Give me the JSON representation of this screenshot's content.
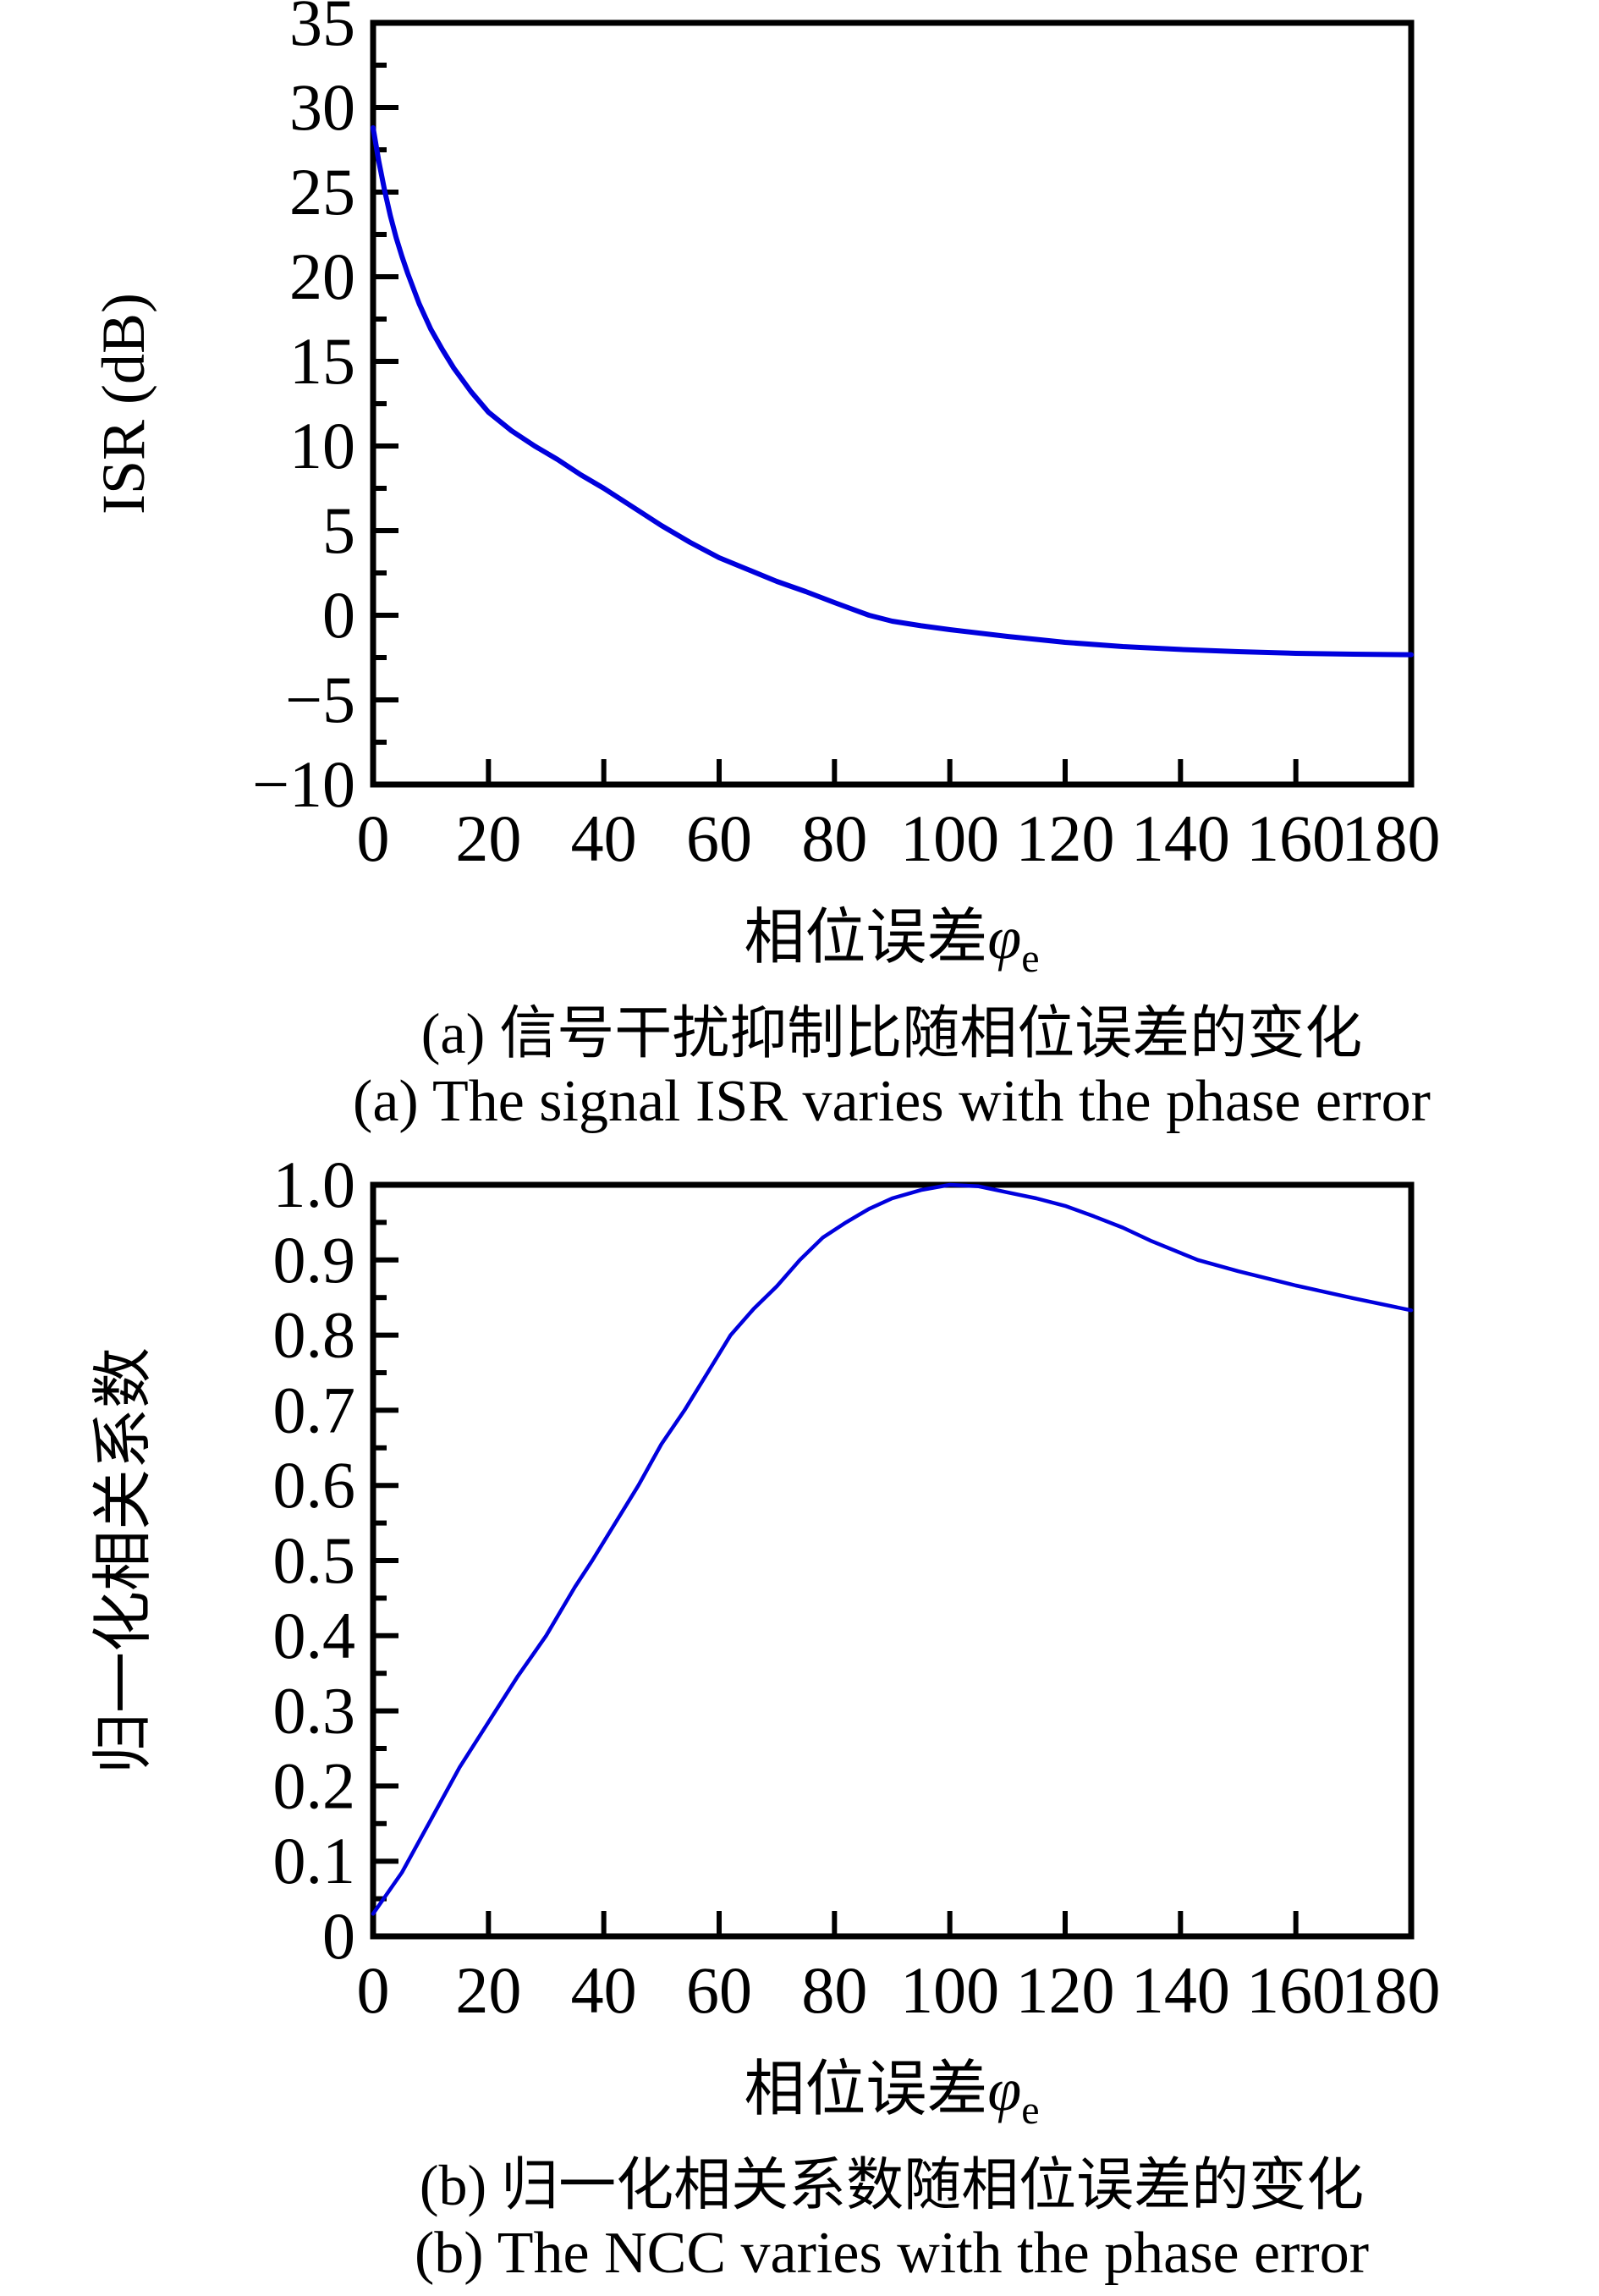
{
  "chart_data": [
    {
      "id": "a",
      "type": "line",
      "caption_zh": "(a) 信号干扰抑制比随相位误差的变化",
      "caption_en": "(a) The signal ISR varies with the phase error",
      "ylabel": "ISR (dB)",
      "xlabel_prefix": "相位误差",
      "xlabel_symbol": "φ",
      "xlabel_subscript": "e",
      "xlim": [
        0,
        180
      ],
      "ylim": [
        -10,
        35
      ],
      "x_tick_values": [
        0,
        20,
        40,
        60,
        80,
        100,
        120,
        140,
        160,
        180
      ],
      "x_tick_labels": [
        "0",
        "20",
        "40",
        "60",
        "80",
        "100",
        "120",
        "140",
        "160",
        "180"
      ],
      "y_tick_values": [
        -10,
        -5,
        0,
        5,
        10,
        15,
        20,
        25,
        30,
        35
      ],
      "y_tick_labels": [
        "−10",
        "−5",
        "0",
        "5",
        "10",
        "15",
        "20",
        "25",
        "30",
        "35"
      ],
      "y_minor_step": 2.5,
      "grid": false,
      "legend": "none",
      "line_color": "#0000dd",
      "axis_color": "#000000",
      "series": [
        {
          "name": "ISR",
          "x": [
            0,
            1,
            2,
            3,
            4,
            5,
            6,
            8,
            10,
            12,
            14,
            17,
            20,
            24,
            28,
            32,
            36,
            40,
            45,
            50,
            55,
            60,
            65,
            70,
            75,
            80,
            86,
            90,
            95,
            100,
            110,
            120,
            130,
            140,
            150,
            160,
            170,
            180
          ],
          "y": [
            28.8,
            26.8,
            25.1,
            23.6,
            22.3,
            21.2,
            20.2,
            18.4,
            16.9,
            15.7,
            14.6,
            13.2,
            12.0,
            10.9,
            10.0,
            9.2,
            8.3,
            7.5,
            6.4,
            5.3,
            4.3,
            3.4,
            2.7,
            2.0,
            1.4,
            0.75,
            0.0,
            -0.35,
            -0.62,
            -0.85,
            -1.25,
            -1.6,
            -1.85,
            -2.02,
            -2.15,
            -2.25,
            -2.3,
            -2.33
          ]
        }
      ]
    },
    {
      "id": "b",
      "type": "line",
      "caption_zh": "(b) 归一化相关系数随相位误差的变化",
      "caption_en": "(b) The NCC varies with the phase error",
      "ylabel": "归一化相关系数",
      "xlabel_prefix": "相位误差",
      "xlabel_symbol": "φ",
      "xlabel_subscript": "e",
      "xlim": [
        0,
        180
      ],
      "ylim": [
        0,
        1
      ],
      "x_tick_values": [
        0,
        20,
        40,
        60,
        80,
        100,
        120,
        140,
        160,
        180
      ],
      "x_tick_labels": [
        "0",
        "20",
        "40",
        "60",
        "80",
        "100",
        "120",
        "140",
        "160",
        "180"
      ],
      "y_tick_values": [
        0,
        0.1,
        0.2,
        0.3,
        0.4,
        0.5,
        0.6,
        0.7,
        0.8,
        0.9,
        1.0
      ],
      "y_tick_labels": [
        "0",
        "0.1",
        "0.2",
        "0.3",
        "0.4",
        "0.5",
        "0.6",
        "0.7",
        "0.8",
        "0.9",
        "1.0"
      ],
      "y_minor_step": 0.05,
      "grid": false,
      "legend": "none",
      "line_color": "#0000dd",
      "axis_color": "#000000",
      "series": [
        {
          "name": "NCC",
          "x": [
            0,
            5,
            10,
            15,
            20,
            25,
            30,
            35,
            38,
            42,
            46,
            50,
            54,
            58,
            62,
            66,
            70,
            74,
            78,
            82,
            86,
            90,
            95,
            100,
            105,
            110,
            115,
            120,
            125,
            130,
            135,
            143,
            150,
            160,
            170,
            180
          ],
          "y": [
            0.03,
            0.085,
            0.155,
            0.225,
            0.285,
            0.345,
            0.4,
            0.465,
            0.5,
            0.55,
            0.6,
            0.655,
            0.7,
            0.75,
            0.8,
            0.835,
            0.865,
            0.9,
            0.93,
            0.95,
            0.968,
            0.982,
            0.993,
            1.0,
            0.998,
            0.99,
            0.982,
            0.972,
            0.958,
            0.943,
            0.925,
            0.9,
            0.885,
            0.866,
            0.849,
            0.833
          ]
        }
      ]
    }
  ]
}
